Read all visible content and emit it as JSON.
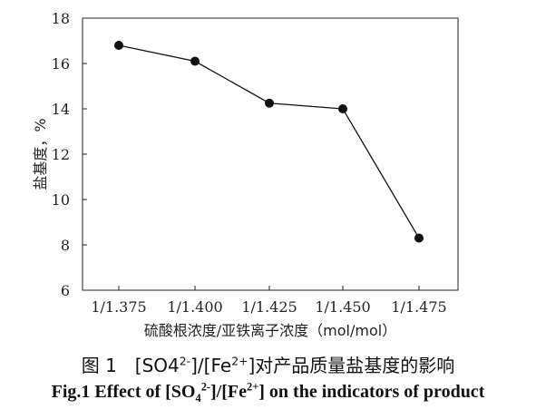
{
  "chart_data": {
    "type": "line",
    "categories": [
      "1/1.375",
      "1/1.400",
      "1/1.425",
      "1/1.450",
      "1/1.475"
    ],
    "values": [
      16.8,
      16.1,
      14.25,
      14.0,
      8.3
    ],
    "xlabel": "硫酸根浓度/亚铁离子浓度（mol/mol）",
    "ylabel": "盐基度，%",
    "ylim": [
      6,
      18
    ],
    "yticks": [
      6,
      8,
      10,
      12,
      14,
      16,
      18
    ],
    "grid": false,
    "line_color": "#111111",
    "marker_color": "#111111"
  },
  "caption": {
    "cn_prefix": "图 1　[SO4",
    "cn_sup1": "2-",
    "cn_mid": "]/[Fe",
    "cn_sup2": "2+",
    "cn_suffix": "]对产品质量盐基度的影响",
    "en_prefix": "Fig.1 Effect of [SO",
    "en_sub": "4",
    "en_sup1": "2-",
    "en_mid": "]/[Fe",
    "en_sup2": "2+",
    "en_suffix": "] on the indicators of product"
  }
}
